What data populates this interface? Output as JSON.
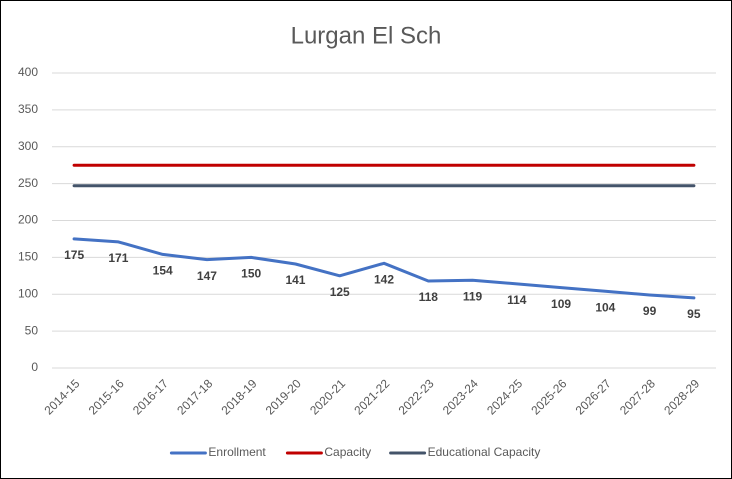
{
  "chart_data": {
    "type": "line",
    "title": "Lurgan El Sch",
    "categories": [
      "2014-15",
      "2015-16",
      "2016-17",
      "2017-18",
      "2018-19",
      "2019-20",
      "2020-21",
      "2021-22",
      "2022-23",
      "2023-24",
      "2024-25",
      "2025-26",
      "2026-27",
      "2027-28",
      "2028-29"
    ],
    "series": [
      {
        "name": "Enrollment",
        "color": "#4472c4",
        "values": [
          175,
          171,
          154,
          147,
          150,
          141,
          125,
          142,
          118,
          119,
          114,
          109,
          104,
          99,
          95
        ],
        "data_labels": true
      },
      {
        "name": "Capacity",
        "color": "#c00000",
        "values": [
          275,
          275,
          275,
          275,
          275,
          275,
          275,
          275,
          275,
          275,
          275,
          275,
          275,
          275,
          275
        ]
      },
      {
        "name": "Educational Capacity",
        "color": "#44546a",
        "values": [
          247,
          247,
          247,
          247,
          247,
          247,
          247,
          247,
          247,
          247,
          247,
          247,
          247,
          247,
          247
        ]
      }
    ],
    "ylim": [
      0,
      400
    ],
    "yticks": [
      0,
      50,
      100,
      150,
      200,
      250,
      300,
      350,
      400
    ],
    "grid": true,
    "legend": "bottom"
  }
}
